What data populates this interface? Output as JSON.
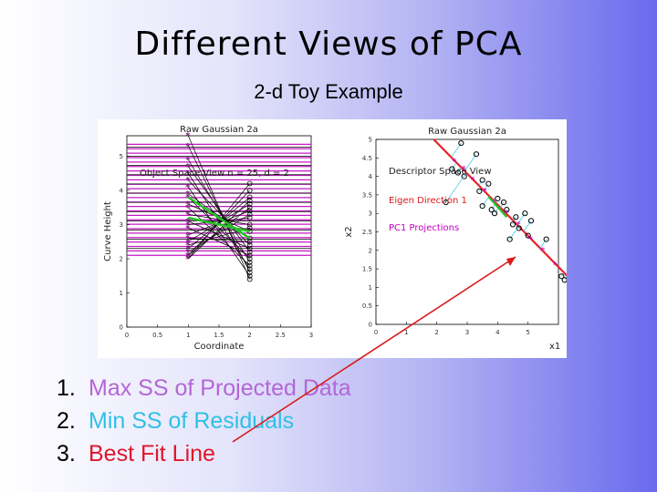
{
  "slide": {
    "title": "Different Views of PCA",
    "subtitle": "2-d Toy Example",
    "items": [
      {
        "num": "1.",
        "text": "Max SS of Projected Data",
        "color": "#b466d6"
      },
      {
        "num": "2.",
        "text": "Min SS of Residuals",
        "color": "#2fc0e6"
      },
      {
        "num": "3.",
        "text": "Best Fit Line",
        "color": "#e0162b"
      }
    ]
  },
  "colors": {
    "magenta": "#c000c0",
    "green": "#22c422",
    "red": "#e8202a",
    "eigen_red": "#d81a1a",
    "cyan": "#2fc0e6",
    "arrow": "#d81a1a"
  },
  "chart_data": [
    {
      "type": "line",
      "title": "Raw Gaussian 2a",
      "annotation": "Object Space View n = 25, d = 2",
      "xlabel": "Coordinate",
      "ylabel": "Curve Height",
      "xlim": [
        0,
        3
      ],
      "ylim": [
        0,
        5.6
      ],
      "xticks": [
        "0",
        "0.5",
        "1",
        "1.5",
        "2",
        "2.5",
        "3"
      ],
      "yticks": [
        "0",
        "1",
        "2",
        "3",
        "4",
        "5"
      ],
      "x": [
        1,
        2
      ],
      "series": [
        {
          "values": [
            5.6,
            1.4
          ]
        },
        {
          "values": [
            5.3,
            1.6
          ]
        },
        {
          "values": [
            4.9,
            1.9
          ]
        },
        {
          "values": [
            4.7,
            2.2
          ]
        },
        {
          "values": [
            4.5,
            1.7
          ]
        },
        {
          "values": [
            4.3,
            2.4
          ]
        },
        {
          "values": [
            4.1,
            1.5
          ]
        },
        {
          "values": [
            3.9,
            2.6
          ]
        },
        {
          "values": [
            3.8,
            2.0
          ]
        },
        {
          "values": [
            3.6,
            2.8
          ]
        },
        {
          "values": [
            3.5,
            1.8
          ]
        },
        {
          "values": [
            3.3,
            3.0
          ]
        },
        {
          "values": [
            3.1,
            2.3
          ]
        },
        {
          "values": [
            3.0,
            3.2
          ]
        },
        {
          "values": [
            2.9,
            2.1
          ]
        },
        {
          "values": [
            2.7,
            3.4
          ]
        },
        {
          "values": [
            2.6,
            2.5
          ]
        },
        {
          "values": [
            2.5,
            3.6
          ]
        },
        {
          "values": [
            2.4,
            2.9
          ]
        },
        {
          "values": [
            2.3,
            3.8
          ]
        },
        {
          "values": [
            2.2,
            3.3
          ]
        },
        {
          "values": [
            2.1,
            4.0
          ]
        },
        {
          "values": [
            2.0,
            3.7
          ]
        },
        {
          "values": [
            2.0,
            4.2
          ]
        },
        {
          "values": [
            2.1,
            3.5
          ]
        }
      ],
      "highlight_series": [
        {
          "values": [
            3.8,
            2.6
          ]
        },
        {
          "values": [
            3.2,
            2.8
          ]
        }
      ]
    },
    {
      "type": "scatter",
      "title": "Raw Gaussian 2a",
      "xlabel": "x1",
      "ylabel": "x2",
      "xlim": [
        0,
        6
      ],
      "ylim": [
        0,
        5
      ],
      "xticks": [
        "0",
        "1",
        "2",
        "3",
        "4",
        "5"
      ],
      "yticks": [
        "0",
        "0.5",
        "1",
        "1.5",
        "2",
        "2.5",
        "3",
        "3.5",
        "4",
        "4.5",
        "5"
      ],
      "annotations": [
        "Descriptor Space View",
        "Eigen Direction 1",
        "PC1 Projections"
      ],
      "points": [
        [
          2.8,
          4.9
        ],
        [
          3.3,
          4.6
        ],
        [
          2.5,
          4.2
        ],
        [
          2.7,
          4.1
        ],
        [
          2.9,
          4.0
        ],
        [
          3.5,
          3.9
        ],
        [
          3.7,
          3.8
        ],
        [
          3.4,
          3.6
        ],
        [
          4.0,
          3.4
        ],
        [
          4.2,
          3.3
        ],
        [
          3.5,
          3.2
        ],
        [
          3.8,
          3.1
        ],
        [
          3.9,
          3.0
        ],
        [
          4.3,
          3.1
        ],
        [
          4.6,
          2.9
        ],
        [
          4.9,
          3.0
        ],
        [
          4.5,
          2.7
        ],
        [
          5.1,
          2.8
        ],
        [
          4.7,
          2.6
        ],
        [
          5.0,
          2.4
        ],
        [
          4.4,
          2.3
        ],
        [
          5.6,
          2.3
        ],
        [
          6.1,
          1.3
        ],
        [
          6.2,
          1.2
        ],
        [
          2.3,
          3.3
        ]
      ],
      "fit_line": {
        "x": [
          1.9,
          6.3
        ],
        "y": [
          5.0,
          1.3
        ]
      },
      "pc1_projections": [
        [
          2.6,
          4.4
        ],
        [
          2.9,
          4.2
        ],
        [
          3.2,
          3.9
        ],
        [
          3.6,
          3.6
        ],
        [
          3.9,
          3.3
        ],
        [
          4.3,
          3.0
        ],
        [
          4.7,
          2.7
        ],
        [
          5.1,
          2.3
        ],
        [
          5.5,
          2.0
        ],
        [
          5.9,
          1.6
        ]
      ]
    }
  ]
}
